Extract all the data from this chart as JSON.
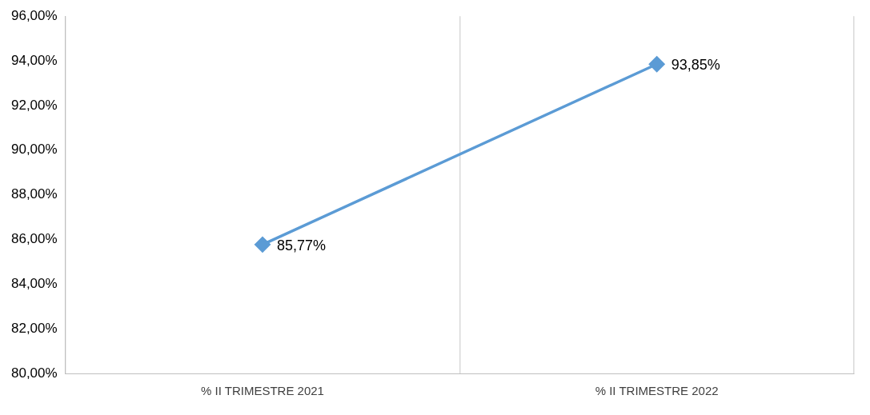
{
  "chart_data": {
    "type": "line",
    "categories": [
      "% II TRIMESTRE 2021",
      "% II TRIMESTRE 2022"
    ],
    "series": [
      {
        "color": "#5b9bd5",
        "values": [
          85.77,
          93.85
        ],
        "value_labels": [
          "85,77%",
          "93,85%"
        ]
      }
    ],
    "ylim": [
      80,
      96
    ],
    "yticks": [
      {
        "value": 80,
        "label": "80,00%"
      },
      {
        "value": 82,
        "label": "82,00%"
      },
      {
        "value": 84,
        "label": "84,00%"
      },
      {
        "value": 86,
        "label": "86,00%"
      },
      {
        "value": 88,
        "label": "88,00%"
      },
      {
        "value": 90,
        "label": "90,00%"
      },
      {
        "value": 92,
        "label": "92,00%"
      },
      {
        "value": 94,
        "label": "94,00%"
      },
      {
        "value": 96,
        "label": "96,00%"
      }
    ],
    "grid": "x",
    "legend": false,
    "marker": "diamond",
    "line_style": "solid"
  }
}
